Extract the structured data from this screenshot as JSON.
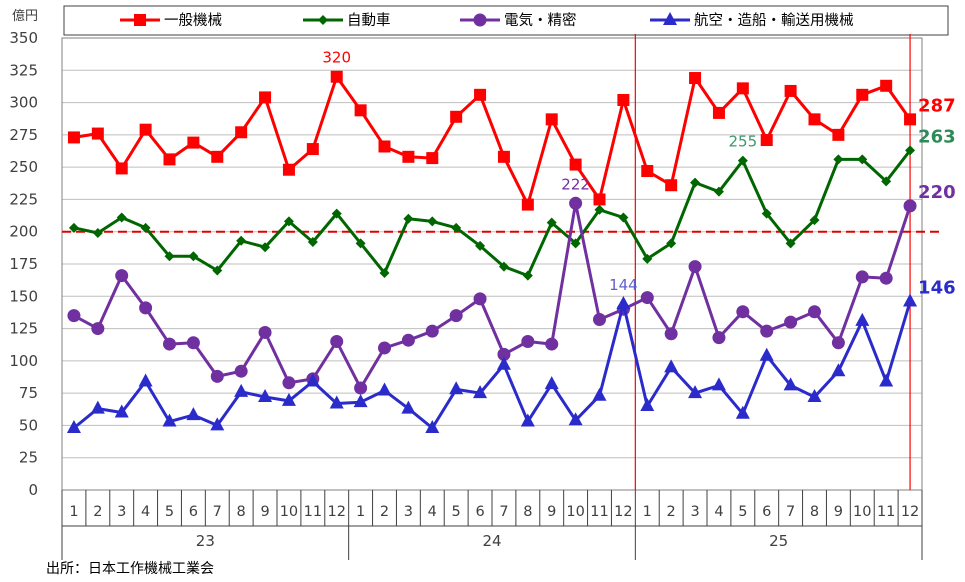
{
  "chart_data": {
    "type": "line",
    "ylabel": "億円",
    "ylim": [
      0,
      350
    ],
    "yticks": [
      0,
      25,
      50,
      75,
      100,
      125,
      150,
      175,
      200,
      225,
      250,
      275,
      300,
      325,
      350
    ],
    "months": [
      "1",
      "2",
      "3",
      "4",
      "5",
      "6",
      "7",
      "8",
      "9",
      "10",
      "11",
      "12",
      "1",
      "2",
      "3",
      "4",
      "5",
      "6",
      "7",
      "8",
      "9",
      "10",
      "11",
      "12",
      "1",
      "2",
      "3",
      "4",
      "5",
      "6",
      "7",
      "8",
      "9",
      "10",
      "11",
      "12"
    ],
    "years": [
      {
        "label": "23",
        "start": 0,
        "end": 11
      },
      {
        "label": "24",
        "start": 12,
        "end": 23
      },
      {
        "label": "25",
        "start": 24,
        "end": 35
      }
    ],
    "reference_line": {
      "value": 200,
      "color": "#e00000"
    },
    "series": [
      {
        "name": "一般機械",
        "color": "#ff0000",
        "marker": "square",
        "values": [
          273,
          276,
          249,
          279,
          256,
          269,
          258,
          277,
          304,
          248,
          264,
          320,
          294,
          266,
          258,
          257,
          289,
          306,
          258,
          221,
          287,
          252,
          225,
          302,
          247,
          236,
          319,
          292,
          311,
          271,
          309,
          287,
          275,
          306,
          313,
          287
        ]
      },
      {
        "name": "自動車",
        "color": "#006600",
        "marker": "diamond",
        "values": [
          203,
          199,
          211,
          203,
          181,
          181,
          170,
          193,
          188,
          208,
          192,
          214,
          191,
          168,
          210,
          208,
          203,
          189,
          173,
          166,
          207,
          191,
          217,
          211,
          179,
          191,
          238,
          231,
          255,
          214,
          191,
          209,
          256,
          256,
          239,
          263
        ]
      },
      {
        "name": "電気・精密",
        "color": "#7030a0",
        "marker": "circle",
        "values": [
          135,
          125,
          166,
          141,
          113,
          114,
          88,
          92,
          122,
          83,
          86,
          115,
          79,
          110,
          116,
          123,
          135,
          148,
          105,
          115,
          113,
          222,
          132,
          140,
          149,
          121,
          173,
          118,
          138,
          123,
          130,
          138,
          114,
          165,
          164,
          220
        ]
      },
      {
        "name": "航空・造船・輸送用機械",
        "color": "#2b2bcc",
        "marker": "triangle",
        "values": [
          48,
          63,
          60,
          84,
          53,
          58,
          50,
          76,
          72,
          69,
          84,
          67,
          68,
          77,
          63,
          48,
          78,
          75,
          97,
          53,
          82,
          54,
          73,
          144,
          65,
          95,
          75,
          81,
          59,
          104,
          81,
          72,
          92,
          131,
          84,
          146
        ]
      }
    ],
    "annotations": [
      {
        "text": "320",
        "series": 0,
        "index": 11,
        "color": "#ff0000",
        "bold": false,
        "pos": "above"
      },
      {
        "text": "222",
        "series": 2,
        "index": 21,
        "color": "#7030a0",
        "bold": false,
        "pos": "above"
      },
      {
        "text": "144",
        "series": 3,
        "index": 23,
        "color": "#6060cc",
        "bold": false,
        "pos": "above"
      },
      {
        "text": "255",
        "series": 1,
        "index": 28,
        "color": "#3a9a6a",
        "bold": false,
        "pos": "above"
      },
      {
        "text": "287",
        "series": 0,
        "index": 35,
        "color": "#ff0000",
        "bold": true,
        "pos": "right"
      },
      {
        "text": "263",
        "series": 1,
        "index": 35,
        "color": "#2e8b57",
        "bold": true,
        "pos": "right"
      },
      {
        "text": "220",
        "series": 2,
        "index": 35,
        "color": "#7030a0",
        "bold": true,
        "pos": "right"
      },
      {
        "text": "146",
        "series": 3,
        "index": 35,
        "color": "#2b2bcc",
        "bold": true,
        "pos": "right"
      }
    ],
    "vertical_markers": [
      {
        "index": 23,
        "color": "#ff0000"
      },
      {
        "index": 35,
        "color": "#ff0000"
      }
    ],
    "grid": true,
    "legend_position": "top"
  },
  "source": "出所：日本工作機械工業会"
}
